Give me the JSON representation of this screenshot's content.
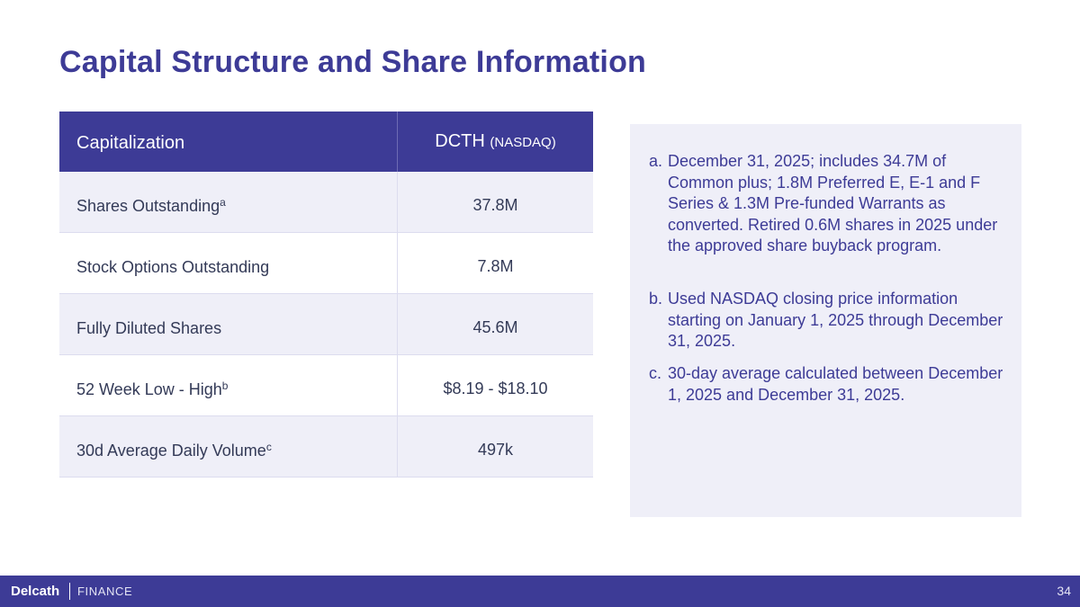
{
  "title": "Capital Structure and Share Information",
  "table": {
    "header": {
      "col1": "Capitalization",
      "col2": "DCTH",
      "col2_sub": "(NASDAQ)"
    },
    "rows": [
      {
        "label": "Shares Outstanding",
        "sup": "a",
        "value": "37.8M"
      },
      {
        "label": "Stock Options Outstanding",
        "sup": "",
        "value": "7.8M"
      },
      {
        "label": "Fully Diluted Shares",
        "sup": "",
        "value": "45.6M"
      },
      {
        "label": "52 Week Low - High",
        "sup": "b",
        "value": "$8.19 - $18.10"
      },
      {
        "label": "30d Average Daily Volume",
        "sup": "c",
        "value": "497k"
      }
    ]
  },
  "notes": [
    {
      "mark": "a.",
      "text": "December 31, 2025; includes 34.7M of Common plus; 1.8M Preferred E, E-1 and F Series & 1.3M Pre-funded Warrants as converted. Retired 0.6M shares in 2025 under the approved share buyback program."
    },
    {
      "mark": "b.",
      "text": "Used NASDAQ closing price information starting on January 1, 2025 through December 31, 2025."
    },
    {
      "mark": "c.",
      "text": "30-day average calculated between December 1, 2025 and December 31, 2025."
    }
  ],
  "footer": {
    "logo": "Delcath",
    "section": "FINANCE",
    "page": "34"
  }
}
